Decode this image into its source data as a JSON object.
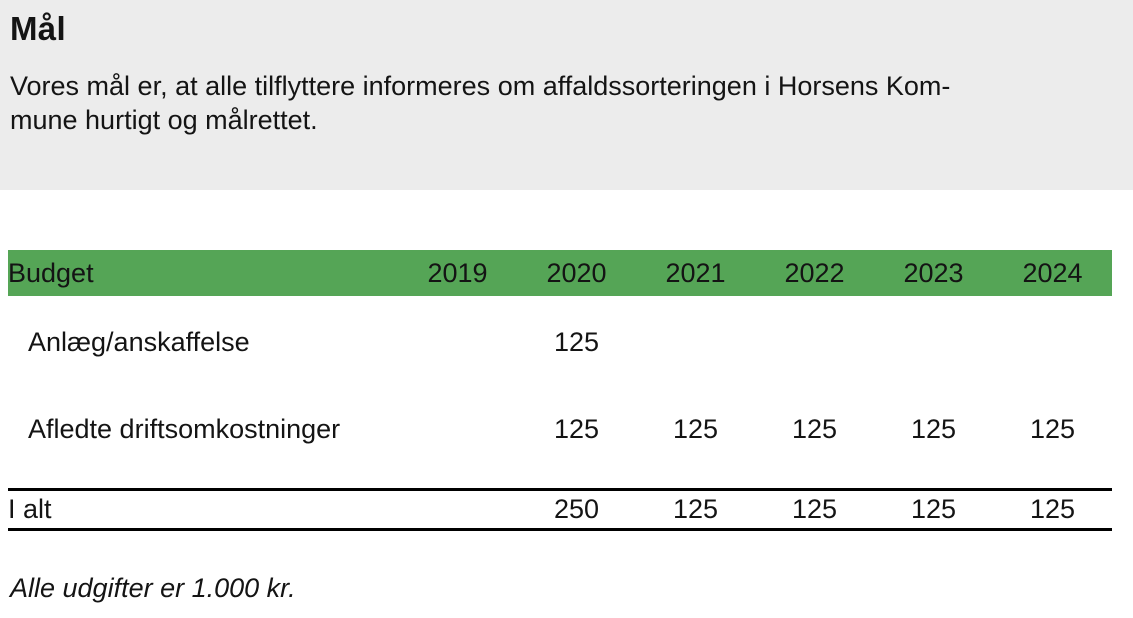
{
  "page": {
    "title": "Mål",
    "intro_lines": [
      "Vores mål er, at alle tilflyttere informeres om affaldssorteringen i Horsens Kom-",
      "mune hurtigt og målrettet."
    ],
    "footnote": "Alle udgifter er 1.000 kr."
  },
  "budget_table": {
    "header": [
      "Budget",
      "2019",
      "2020",
      "2021",
      "2022",
      "2023",
      "2024"
    ],
    "rows": [
      {
        "label": "Anlæg/anskaffelse",
        "values": [
          "",
          "125",
          "",
          "",
          "",
          ""
        ]
      },
      {
        "label": "Afledte driftsomkostninger",
        "values": [
          "",
          "125",
          "125",
          "125",
          "125",
          "125"
        ]
      }
    ],
    "total_row": {
      "label": "I alt",
      "values": [
        "",
        "250",
        "125",
        "125",
        "125",
        "125"
      ]
    }
  },
  "colors": {
    "header_bg": "#55a556",
    "intro_bg": "#ececec"
  }
}
